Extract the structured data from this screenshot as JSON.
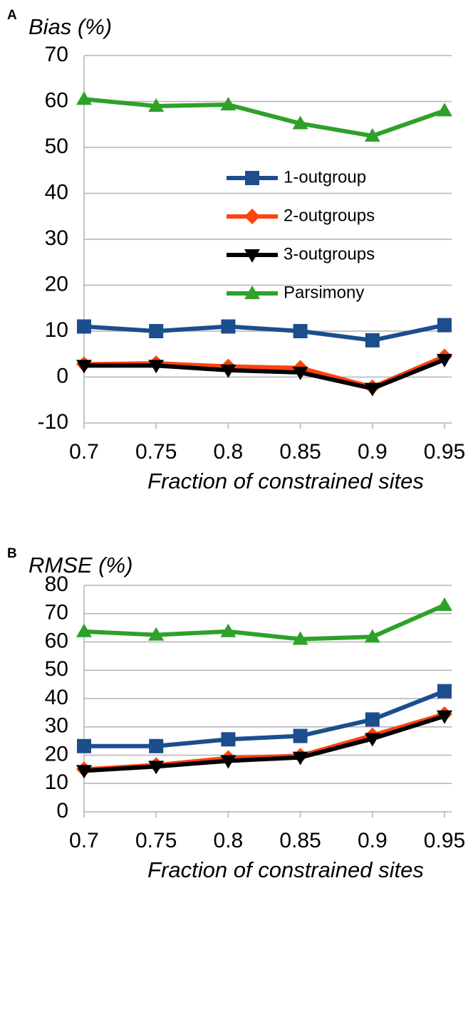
{
  "chart_data": [
    {
      "type": "line",
      "panel": "A",
      "title": "Bias (%)",
      "x_label": "Fraction of constrained sites",
      "x": [
        0.7,
        0.75,
        0.8,
        0.85,
        0.9,
        0.95
      ],
      "xlim": [
        0.7,
        0.95
      ],
      "xticks": [
        0.7,
        0.75,
        0.8,
        0.85,
        0.9,
        0.95
      ],
      "ylim": [
        -10,
        70
      ],
      "yticks": [
        -10,
        0,
        10,
        20,
        30,
        40,
        50,
        60,
        70
      ],
      "grid": true,
      "legend": "center-right",
      "series": [
        {
          "name": "1-outgroup",
          "color": "#1c4e8e",
          "marker": "square",
          "values": [
            11,
            10,
            11,
            10,
            8,
            11.3
          ]
        },
        {
          "name": "2-outgroups",
          "color": "#ff420e",
          "marker": "diamond",
          "values": [
            2.8,
            3,
            2.3,
            2,
            -2.2,
            4.5
          ]
        },
        {
          "name": "3-outgroups",
          "color": "#000000",
          "marker": "triangle-down",
          "values": [
            2.5,
            2.5,
            1.5,
            1,
            -2.5,
            3.8
          ]
        },
        {
          "name": "Parsimony",
          "color": "#2ea12a",
          "marker": "triangle-up",
          "values": [
            60.5,
            59,
            59.3,
            55.2,
            52.5,
            58
          ]
        }
      ]
    },
    {
      "type": "line",
      "panel": "B",
      "title": "RMSE (%)",
      "x_label": "Fraction of constrained sites",
      "x": [
        0.7,
        0.75,
        0.8,
        0.85,
        0.9,
        0.95
      ],
      "xlim": [
        0.7,
        0.95
      ],
      "xticks": [
        0.7,
        0.75,
        0.8,
        0.85,
        0.9,
        0.95
      ],
      "ylim": [
        0,
        80
      ],
      "yticks": [
        0,
        10,
        20,
        30,
        40,
        50,
        60,
        70,
        80
      ],
      "grid": true,
      "series": [
        {
          "color": "#1c4e8e",
          "marker": "square",
          "values": [
            23.2,
            23.2,
            25.6,
            26.8,
            32.6,
            42.6
          ]
        },
        {
          "color": "#ff420e",
          "marker": "diamond",
          "values": [
            15,
            16.5,
            19,
            19.8,
            27,
            34.5
          ]
        },
        {
          "color": "#000000",
          "marker": "triangle-down",
          "values": [
            14.5,
            16,
            18,
            19.2,
            25.8,
            33.8
          ]
        },
        {
          "color": "#2ea12a",
          "marker": "triangle-up",
          "values": [
            63.7,
            62.5,
            63.7,
            61,
            61.8,
            73
          ]
        }
      ]
    }
  ]
}
